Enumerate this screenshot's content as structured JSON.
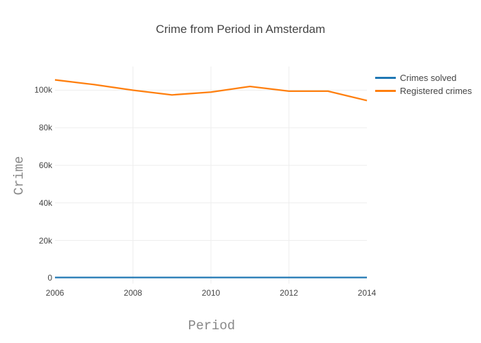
{
  "chart_data": {
    "type": "line",
    "title": "Crime from Period in Amsterdam",
    "xlabel": "Period",
    "ylabel": "Crime",
    "x": [
      2006,
      2007,
      2008,
      2009,
      2010,
      2011,
      2012,
      2013,
      2014
    ],
    "series": [
      {
        "name": "Crimes solved",
        "color": "#1f77b4",
        "values": [
          300,
          300,
          300,
          300,
          300,
          300,
          300,
          300,
          300
        ]
      },
      {
        "name": "Registered crimes",
        "color": "#ff7f0e",
        "values": [
          105500,
          103000,
          100000,
          97500,
          99000,
          102000,
          99500,
          99500,
          94500
        ]
      }
    ],
    "xticks": {
      "values": [
        2006,
        2008,
        2010,
        2012,
        2014
      ],
      "labels": [
        "2006",
        "2008",
        "2010",
        "2012",
        "2014"
      ]
    },
    "yticks": {
      "values": [
        0,
        20000,
        40000,
        60000,
        80000,
        100000
      ],
      "labels": [
        "0",
        "20k",
        "40k",
        "60k",
        "80k",
        "100k"
      ]
    },
    "xlim": [
      2006,
      2014
    ],
    "ylim": [
      -3000,
      112600
    ],
    "grid": true,
    "legend_position": "right",
    "colors": {
      "grid": "#eeeeee",
      "tick_text": "#444444",
      "title_text": "#444444",
      "axis_title_text": "#888888",
      "background": "#ffffff"
    }
  }
}
